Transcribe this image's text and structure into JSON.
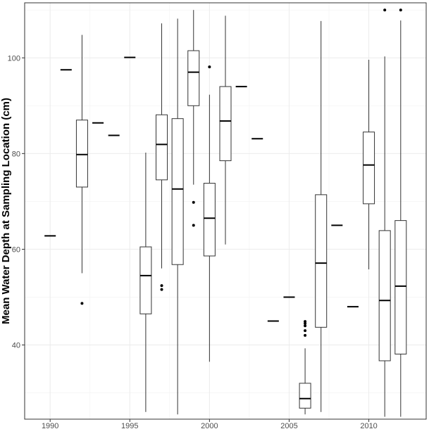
{
  "chart_data": {
    "type": "box",
    "title": "",
    "xlabel": "",
    "ylabel": "Mean Water Depth at Sampling Location (cm)",
    "xlim": [
      1988.4,
      2013.6
    ],
    "ylim": [
      24.5,
      111.5
    ],
    "x_ticks": [
      1990,
      1995,
      2000,
      2005,
      2010
    ],
    "y_ticks": [
      40,
      60,
      80,
      100
    ],
    "grid": true,
    "boxes": [
      {
        "year": 1990,
        "min": 62.8,
        "q1": 62.8,
        "median": 62.8,
        "q3": 62.8,
        "max": 62.8,
        "outliers": []
      },
      {
        "year": 1991,
        "min": 97.5,
        "q1": 97.5,
        "median": 97.5,
        "q3": 97.5,
        "max": 97.5,
        "outliers": []
      },
      {
        "year": 1992,
        "min": 55.0,
        "q1": 73.0,
        "median": 79.8,
        "q3": 87.0,
        "max": 104.8,
        "outliers": [
          48.7
        ]
      },
      {
        "year": 1993,
        "min": 86.4,
        "q1": 86.4,
        "median": 86.4,
        "q3": 86.4,
        "max": 86.4,
        "outliers": []
      },
      {
        "year": 1994,
        "min": 83.8,
        "q1": 83.8,
        "median": 83.8,
        "q3": 83.8,
        "max": 83.8,
        "outliers": []
      },
      {
        "year": 1995,
        "min": 100.1,
        "q1": 100.1,
        "median": 100.1,
        "q3": 100.1,
        "max": 100.1,
        "outliers": []
      },
      {
        "year": 1996,
        "min": 26.0,
        "q1": 46.5,
        "median": 54.5,
        "q3": 60.5,
        "max": 80.2,
        "outliers": []
      },
      {
        "year": 1997,
        "min": 56.0,
        "q1": 74.5,
        "median": 81.9,
        "q3": 88.1,
        "max": 107.2,
        "outliers": [
          51.6,
          52.4
        ]
      },
      {
        "year": 1998,
        "min": 25.5,
        "q1": 56.8,
        "median": 72.6,
        "q3": 87.3,
        "max": 108.2,
        "outliers": []
      },
      {
        "year": 1999,
        "min": 73.5,
        "q1": 90.0,
        "median": 97.0,
        "q3": 101.5,
        "max": 110.0,
        "outliers": [
          65.0,
          69.8
        ]
      },
      {
        "year": 2000,
        "min": 36.5,
        "q1": 58.6,
        "median": 66.5,
        "q3": 73.8,
        "max": 92.3,
        "outliers": [
          98.1
        ]
      },
      {
        "year": 2001,
        "min": 61.0,
        "q1": 78.5,
        "median": 86.8,
        "q3": 94.0,
        "max": 108.8,
        "outliers": []
      },
      {
        "year": 2002,
        "min": 94.0,
        "q1": 94.0,
        "median": 94.0,
        "q3": 94.0,
        "max": 94.0,
        "outliers": []
      },
      {
        "year": 2003,
        "min": 83.1,
        "q1": 83.1,
        "median": 83.1,
        "q3": 83.1,
        "max": 83.1,
        "outliers": []
      },
      {
        "year": 2004,
        "min": 45.0,
        "q1": 45.0,
        "median": 45.0,
        "q3": 45.0,
        "max": 45.0,
        "outliers": []
      },
      {
        "year": 2005,
        "min": 50.0,
        "q1": 50.0,
        "median": 50.0,
        "q3": 50.0,
        "max": 50.0,
        "outliers": []
      },
      {
        "year": 2006,
        "min": 25.5,
        "q1": 26.8,
        "median": 28.8,
        "q3": 32.0,
        "max": 39.3,
        "outliers": [
          42.0,
          43.0,
          44.0,
          44.5,
          44.9
        ]
      },
      {
        "year": 2007,
        "min": 26.0,
        "q1": 43.7,
        "median": 57.1,
        "q3": 71.4,
        "max": 107.7,
        "outliers": []
      },
      {
        "year": 2008,
        "min": 65.0,
        "q1": 65.0,
        "median": 65.0,
        "q3": 65.0,
        "max": 65.0,
        "outliers": []
      },
      {
        "year": 2009,
        "min": 48.0,
        "q1": 48.0,
        "median": 48.0,
        "q3": 48.0,
        "max": 48.0,
        "outliers": []
      },
      {
        "year": 2010,
        "min": 55.8,
        "q1": 69.5,
        "median": 77.6,
        "q3": 84.5,
        "max": 99.6,
        "outliers": []
      },
      {
        "year": 2011,
        "min": 25.0,
        "q1": 36.7,
        "median": 49.3,
        "q3": 63.9,
        "max": 100.3,
        "outliers": [
          110.0
        ]
      },
      {
        "year": 2012,
        "min": 25.0,
        "q1": 38.1,
        "median": 52.3,
        "q3": 66.0,
        "max": 107.8,
        "outliers": [
          110.0
        ]
      }
    ]
  }
}
